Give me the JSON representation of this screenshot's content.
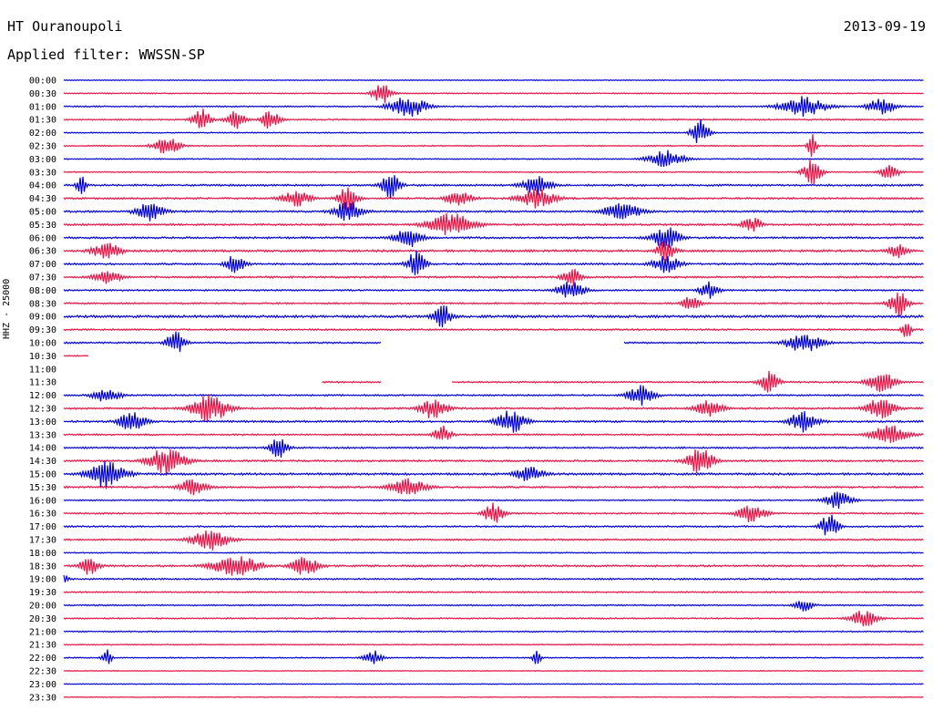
{
  "header": {
    "station": "HT Ouranoupoli",
    "date": "2013-09-19",
    "filter": "Applied filter: WWSSN-SP"
  },
  "side_label": "HHZ - 25000",
  "colors": {
    "odd_trace": "#0000dd",
    "even_trace": "#ee1144"
  },
  "chart_data": {
    "type": "line",
    "description_style": "helicorder",
    "rows": [
      {
        "time": "00:00",
        "color": "blue",
        "activity": 0.15,
        "bursts": []
      },
      {
        "time": "00:30",
        "color": "red",
        "activity": 0.2,
        "bursts": [
          {
            "t": 0.37,
            "a": 0.9,
            "w": 0.02
          }
        ]
      },
      {
        "time": "01:00",
        "color": "blue",
        "activity": 0.25,
        "bursts": [
          {
            "t": 0.4,
            "a": 0.8,
            "w": 0.04
          },
          {
            "t": 0.86,
            "a": 0.7,
            "w": 0.05
          },
          {
            "t": 0.95,
            "a": 0.6,
            "w": 0.03
          }
        ]
      },
      {
        "time": "01:30",
        "color": "red",
        "activity": 0.25,
        "bursts": [
          {
            "t": 0.16,
            "a": 0.8,
            "w": 0.02
          },
          {
            "t": 0.2,
            "a": 0.7,
            "w": 0.02
          },
          {
            "t": 0.24,
            "a": 0.7,
            "w": 0.02
          }
        ]
      },
      {
        "time": "02:00",
        "color": "blue",
        "activity": 0.2,
        "bursts": [
          {
            "t": 0.74,
            "a": 0.9,
            "w": 0.02
          }
        ]
      },
      {
        "time": "02:30",
        "color": "red",
        "activity": 0.2,
        "bursts": [
          {
            "t": 0.12,
            "a": 0.6,
            "w": 0.03
          },
          {
            "t": 0.87,
            "a": 1.0,
            "w": 0.01
          }
        ]
      },
      {
        "time": "03:00",
        "color": "blue",
        "activity": 0.2,
        "bursts": [
          {
            "t": 0.7,
            "a": 0.6,
            "w": 0.04
          }
        ]
      },
      {
        "time": "03:30",
        "color": "red",
        "activity": 0.2,
        "bursts": [
          {
            "t": 0.87,
            "a": 1.0,
            "w": 0.02
          },
          {
            "t": 0.96,
            "a": 0.6,
            "w": 0.02
          }
        ]
      },
      {
        "time": "04:00",
        "color": "blue",
        "activity": 0.35,
        "bursts": [
          {
            "t": 0.02,
            "a": 0.8,
            "w": 0.01
          },
          {
            "t": 0.38,
            "a": 0.9,
            "w": 0.02
          },
          {
            "t": 0.55,
            "a": 0.7,
            "w": 0.03
          }
        ]
      },
      {
        "time": "04:30",
        "color": "red",
        "activity": 0.35,
        "bursts": [
          {
            "t": 0.27,
            "a": 0.6,
            "w": 0.03
          },
          {
            "t": 0.33,
            "a": 1.0,
            "w": 0.02
          },
          {
            "t": 0.46,
            "a": 0.6,
            "w": 0.03
          },
          {
            "t": 0.55,
            "a": 0.7,
            "w": 0.04
          }
        ]
      },
      {
        "time": "05:00",
        "color": "blue",
        "activity": 0.35,
        "bursts": [
          {
            "t": 0.1,
            "a": 0.7,
            "w": 0.03
          },
          {
            "t": 0.33,
            "a": 0.8,
            "w": 0.03
          },
          {
            "t": 0.65,
            "a": 0.6,
            "w": 0.04
          }
        ]
      },
      {
        "time": "05:30",
        "color": "red",
        "activity": 0.35,
        "bursts": [
          {
            "t": 0.45,
            "a": 0.8,
            "w": 0.05
          },
          {
            "t": 0.8,
            "a": 0.6,
            "w": 0.02
          }
        ]
      },
      {
        "time": "06:00",
        "color": "blue",
        "activity": 0.35,
        "bursts": [
          {
            "t": 0.4,
            "a": 0.7,
            "w": 0.03
          },
          {
            "t": 0.7,
            "a": 0.8,
            "w": 0.03
          }
        ]
      },
      {
        "time": "06:30",
        "color": "red",
        "activity": 0.4,
        "bursts": [
          {
            "t": 0.05,
            "a": 0.7,
            "w": 0.03
          },
          {
            "t": 0.7,
            "a": 0.8,
            "w": 0.02
          },
          {
            "t": 0.97,
            "a": 0.5,
            "w": 0.02
          }
        ]
      },
      {
        "time": "07:00",
        "color": "blue",
        "activity": 0.35,
        "bursts": [
          {
            "t": 0.2,
            "a": 0.8,
            "w": 0.02
          },
          {
            "t": 0.41,
            "a": 1.0,
            "w": 0.02
          },
          {
            "t": 0.7,
            "a": 0.6,
            "w": 0.03
          }
        ]
      },
      {
        "time": "07:30",
        "color": "red",
        "activity": 0.35,
        "bursts": [
          {
            "t": 0.05,
            "a": 0.5,
            "w": 0.03
          },
          {
            "t": 0.59,
            "a": 0.7,
            "w": 0.02
          }
        ]
      },
      {
        "time": "08:00",
        "color": "blue",
        "activity": 0.3,
        "bursts": [
          {
            "t": 0.59,
            "a": 0.7,
            "w": 0.03
          },
          {
            "t": 0.75,
            "a": 0.6,
            "w": 0.02
          }
        ]
      },
      {
        "time": "08:30",
        "color": "red",
        "activity": 0.3,
        "bursts": [
          {
            "t": 0.73,
            "a": 0.6,
            "w": 0.02
          },
          {
            "t": 0.97,
            "a": 1.0,
            "w": 0.02
          }
        ]
      },
      {
        "time": "09:00",
        "color": "blue",
        "activity": 0.45,
        "bursts": [
          {
            "t": 0.44,
            "a": 0.9,
            "w": 0.02
          }
        ]
      },
      {
        "time": "09:30",
        "color": "red",
        "activity": 0.3,
        "bursts": [
          {
            "t": 0.98,
            "a": 0.8,
            "w": 0.01
          }
        ]
      },
      {
        "time": "10:00",
        "color": "blue",
        "activity": 0.3,
        "bursts": [
          {
            "t": 0.13,
            "a": 0.9,
            "w": 0.02
          },
          {
            "t": 0.86,
            "a": 0.7,
            "w": 0.04
          }
        ],
        "gaps": [
          [
            0.37,
            0.65
          ]
        ]
      },
      {
        "time": "10:30",
        "color": "red",
        "activity": 0.2,
        "bursts": [],
        "gaps": [
          [
            0.03,
            1.0
          ]
        ]
      },
      {
        "time": "11:00",
        "color": "blue",
        "activity": 0.0,
        "bursts": [],
        "gaps": [
          [
            0.0,
            1.0
          ]
        ]
      },
      {
        "time": "11:30",
        "color": "red",
        "activity": 0.3,
        "bursts": [
          {
            "t": 0.82,
            "a": 0.8,
            "w": 0.02
          },
          {
            "t": 0.95,
            "a": 0.8,
            "w": 0.03
          }
        ],
        "gaps": [
          [
            0.0,
            0.3
          ],
          [
            0.37,
            0.45
          ]
        ]
      },
      {
        "time": "12:00",
        "color": "blue",
        "activity": 0.3,
        "bursts": [
          {
            "t": 0.05,
            "a": 0.5,
            "w": 0.03
          },
          {
            "t": 0.67,
            "a": 0.7,
            "w": 0.03
          }
        ]
      },
      {
        "time": "12:30",
        "color": "red",
        "activity": 0.35,
        "bursts": [
          {
            "t": 0.17,
            "a": 1.0,
            "w": 0.04
          },
          {
            "t": 0.43,
            "a": 0.8,
            "w": 0.03
          },
          {
            "t": 0.75,
            "a": 0.6,
            "w": 0.03
          },
          {
            "t": 0.95,
            "a": 0.8,
            "w": 0.03
          }
        ]
      },
      {
        "time": "13:00",
        "color": "blue",
        "activity": 0.35,
        "bursts": [
          {
            "t": 0.08,
            "a": 0.7,
            "w": 0.03
          },
          {
            "t": 0.52,
            "a": 0.9,
            "w": 0.03
          },
          {
            "t": 0.86,
            "a": 0.8,
            "w": 0.03
          }
        ]
      },
      {
        "time": "13:30",
        "color": "red",
        "activity": 0.3,
        "bursts": [
          {
            "t": 0.44,
            "a": 0.6,
            "w": 0.02
          },
          {
            "t": 0.96,
            "a": 0.7,
            "w": 0.04
          }
        ]
      },
      {
        "time": "14:00",
        "color": "blue",
        "activity": 0.3,
        "bursts": [
          {
            "t": 0.25,
            "a": 0.7,
            "w": 0.02
          }
        ]
      },
      {
        "time": "14:30",
        "color": "red",
        "activity": 0.35,
        "bursts": [
          {
            "t": 0.12,
            "a": 1.0,
            "w": 0.04
          },
          {
            "t": 0.74,
            "a": 0.9,
            "w": 0.03
          }
        ]
      },
      {
        "time": "15:00",
        "color": "blue",
        "activity": 0.4,
        "bursts": [
          {
            "t": 0.05,
            "a": 1.0,
            "w": 0.04
          },
          {
            "t": 0.54,
            "a": 0.6,
            "w": 0.03
          }
        ]
      },
      {
        "time": "15:30",
        "color": "red",
        "activity": 0.35,
        "bursts": [
          {
            "t": 0.15,
            "a": 0.6,
            "w": 0.03
          },
          {
            "t": 0.4,
            "a": 0.6,
            "w": 0.04
          }
        ]
      },
      {
        "time": "16:00",
        "color": "blue",
        "activity": 0.25,
        "bursts": [
          {
            "t": 0.9,
            "a": 0.6,
            "w": 0.03
          }
        ]
      },
      {
        "time": "16:30",
        "color": "red",
        "activity": 0.3,
        "bursts": [
          {
            "t": 0.5,
            "a": 0.9,
            "w": 0.02
          },
          {
            "t": 0.8,
            "a": 0.7,
            "w": 0.03
          }
        ]
      },
      {
        "time": "17:00",
        "color": "blue",
        "activity": 0.3,
        "bursts": [
          {
            "t": 0.89,
            "a": 0.9,
            "w": 0.02
          }
        ]
      },
      {
        "time": "17:30",
        "color": "red",
        "activity": 0.3,
        "bursts": [
          {
            "t": 0.17,
            "a": 0.8,
            "w": 0.04
          }
        ]
      },
      {
        "time": "18:00",
        "color": "blue",
        "activity": 0.2,
        "bursts": []
      },
      {
        "time": "18:30",
        "color": "red",
        "activity": 0.35,
        "bursts": [
          {
            "t": 0.03,
            "a": 0.7,
            "w": 0.02
          },
          {
            "t": 0.2,
            "a": 0.8,
            "w": 0.05
          },
          {
            "t": 0.28,
            "a": 0.7,
            "w": 0.03
          }
        ]
      },
      {
        "time": "19:00",
        "color": "blue",
        "activity": 0.3,
        "bursts": [
          {
            "t": 0.0,
            "a": 0.5,
            "w": 0.01
          }
        ]
      },
      {
        "time": "19:30",
        "color": "red",
        "activity": 0.25,
        "bursts": []
      },
      {
        "time": "20:00",
        "color": "blue",
        "activity": 0.25,
        "bursts": [
          {
            "t": 0.86,
            "a": 0.5,
            "w": 0.02
          }
        ]
      },
      {
        "time": "20:30",
        "color": "red",
        "activity": 0.25,
        "bursts": [
          {
            "t": 0.93,
            "a": 0.6,
            "w": 0.03
          }
        ]
      },
      {
        "time": "21:00",
        "color": "blue",
        "activity": 0.25,
        "bursts": []
      },
      {
        "time": "21:30",
        "color": "red",
        "activity": 0.2,
        "bursts": []
      },
      {
        "time": "22:00",
        "color": "blue",
        "activity": 0.2,
        "bursts": [
          {
            "t": 0.05,
            "a": 0.6,
            "w": 0.01
          },
          {
            "t": 0.36,
            "a": 0.6,
            "w": 0.02
          },
          {
            "t": 0.55,
            "a": 0.5,
            "w": 0.01
          }
        ]
      },
      {
        "time": "22:30",
        "color": "red",
        "activity": 0.15,
        "bursts": []
      },
      {
        "time": "23:00",
        "color": "blue",
        "activity": 0.15,
        "bursts": []
      },
      {
        "time": "23:30",
        "color": "red",
        "activity": 0.15,
        "bursts": []
      }
    ]
  }
}
